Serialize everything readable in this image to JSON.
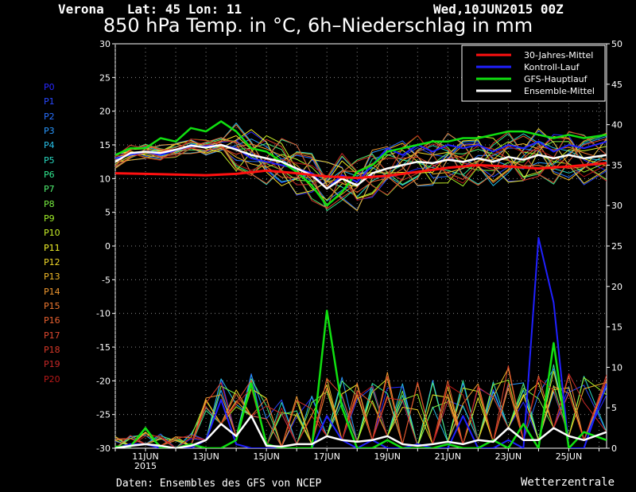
{
  "header": {
    "location": "Verona   Lat: 45 Lon: 11",
    "date": "Wed,10JUN2015 00Z",
    "title": "850 hPa Temp. in °C, 6h–Niederschlag in mm"
  },
  "footer": {
    "source": "Daten: Ensembles des GFS von NCEP",
    "brand": "Wetterzentrale"
  },
  "members": [
    {
      "label": "P0",
      "color": "#2828ff"
    },
    {
      "label": "P1",
      "color": "#2848ff"
    },
    {
      "label": "P2",
      "color": "#2870ff"
    },
    {
      "label": "P3",
      "color": "#2898ff"
    },
    {
      "label": "P4",
      "color": "#28c0e8"
    },
    {
      "label": "P5",
      "color": "#28d8c0"
    },
    {
      "label": "P6",
      "color": "#30e890"
    },
    {
      "label": "P7",
      "color": "#50f070"
    },
    {
      "label": "P8",
      "color": "#78f040"
    },
    {
      "label": "P9",
      "color": "#a0f028"
    },
    {
      "label": "P10",
      "color": "#c8f028"
    },
    {
      "label": "P11",
      "color": "#f0f028"
    },
    {
      "label": "P12",
      "color": "#f0d828"
    },
    {
      "label": "P13",
      "color": "#f0b828"
    },
    {
      "label": "P14",
      "color": "#f09830"
    },
    {
      "label": "P15",
      "color": "#f07830"
    },
    {
      "label": "P16",
      "color": "#e86030"
    },
    {
      "label": "P17",
      "color": "#e04830"
    },
    {
      "label": "P18",
      "color": "#d83828"
    },
    {
      "label": "P19",
      "color": "#c82828"
    },
    {
      "label": "P20",
      "color": "#b81818"
    }
  ],
  "chart_data": {
    "type": "line",
    "title": "850 hPa Temp. in °C, 6h–Niederschlag in mm",
    "x_ticks": [
      "11JUN",
      "13JUN",
      "15JUN",
      "17JUN",
      "19JUN",
      "21JUN",
      "23JUN",
      "25JUN"
    ],
    "x_tick_year": "2015",
    "x_range_days": [
      10.0,
      26.25
    ],
    "y_left": {
      "ticks": [
        30,
        25,
        20,
        15,
        10,
        5,
        0,
        -5,
        -10,
        -15,
        -20,
        -25,
        -30
      ],
      "range": [
        -30,
        30
      ]
    },
    "y_right": {
      "ticks": [
        50,
        45,
        40,
        35,
        30,
        25,
        20,
        15,
        10,
        5,
        0
      ],
      "range": [
        0,
        50
      ]
    },
    "grid": true,
    "legend": {
      "position": "top-right",
      "entries": [
        {
          "name": "30-Jahres-Mittel",
          "color": "#ff1010"
        },
        {
          "name": "Kontroll-Lauf",
          "color": "#2020ff"
        },
        {
          "name": "GFS-Hauptlauf",
          "color": "#10e010"
        },
        {
          "name": "Ensemble-Mittel",
          "color": "#ffffff"
        }
      ]
    },
    "temp_series": {
      "climate": {
        "x": [
          10.0,
          11.0,
          12.0,
          13.0,
          14.0,
          15.0,
          16.0,
          17.0,
          18.0,
          19.0,
          20.0,
          21.0,
          22.0,
          23.0,
          24.0,
          25.0,
          26.25
        ],
        "y": [
          10.8,
          10.7,
          10.6,
          10.5,
          10.7,
          11.2,
          10.8,
          10.3,
          10.1,
          10.4,
          11.0,
          11.6,
          12.0,
          11.8,
          11.5,
          11.8,
          12.3
        ]
      },
      "control": {
        "x": [
          10.0,
          10.5,
          11.0,
          11.5,
          12.0,
          12.5,
          13.0,
          13.5,
          14.0,
          14.5,
          15.0,
          15.5,
          16.0,
          16.5,
          17.0,
          17.5,
          18.0,
          18.5,
          19.0,
          19.5,
          20.0,
          20.5,
          21.0,
          21.5,
          22.0,
          22.5,
          23.0,
          23.5,
          24.0,
          24.5,
          25.0,
          25.5,
          26.25
        ],
        "y": [
          13.0,
          13.5,
          14.0,
          13.5,
          14.2,
          14.8,
          14.8,
          15.0,
          14.5,
          13.0,
          12.5,
          12.0,
          11.5,
          10.8,
          8.5,
          10.5,
          9.5,
          12.0,
          14.5,
          13.5,
          15.0,
          14.0,
          15.0,
          14.5,
          15.0,
          14.0,
          15.0,
          14.5,
          15.5,
          14.0,
          15.0,
          14.5,
          15.5
        ]
      },
      "gfs": {
        "x": [
          10.0,
          10.5,
          11.0,
          11.5,
          12.0,
          12.5,
          13.0,
          13.5,
          14.0,
          14.5,
          15.0,
          15.5,
          16.0,
          16.5,
          17.0,
          17.5,
          18.0,
          18.5,
          19.0,
          19.5,
          20.0,
          20.5,
          21.0,
          21.5,
          22.0,
          22.5,
          23.0,
          23.5,
          24.0,
          24.5,
          25.0,
          25.5,
          26.25
        ],
        "y": [
          13.5,
          14.5,
          14.5,
          16.0,
          15.5,
          17.5,
          17.0,
          18.5,
          17.0,
          14.5,
          14.0,
          12.5,
          11.0,
          9.0,
          6.0,
          8.0,
          11.0,
          12.0,
          14.0,
          14.5,
          15.0,
          15.5,
          15.5,
          16.0,
          16.0,
          16.5,
          17.0,
          17.0,
          16.5,
          16.0,
          16.5,
          16.0,
          16.5
        ]
      },
      "mean": {
        "x": [
          10.0,
          10.5,
          11.0,
          11.5,
          12.0,
          12.5,
          13.0,
          13.5,
          14.0,
          14.5,
          15.0,
          15.5,
          16.0,
          16.5,
          17.0,
          17.5,
          18.0,
          18.5,
          19.0,
          19.5,
          20.0,
          20.5,
          21.0,
          21.5,
          22.0,
          22.5,
          23.0,
          23.5,
          24.0,
          24.5,
          25.0,
          25.5,
          26.25
        ],
        "y": [
          12.5,
          13.8,
          14.0,
          13.8,
          14.3,
          14.9,
          14.6,
          15.0,
          14.3,
          13.5,
          13.0,
          12.5,
          11.5,
          10.5,
          8.5,
          10.0,
          9.0,
          10.8,
          11.5,
          12.0,
          12.5,
          12.3,
          12.8,
          12.5,
          13.0,
          12.5,
          13.2,
          12.8,
          13.5,
          13.0,
          13.5,
          13.0,
          13.5
        ]
      }
    },
    "precip_series": {
      "gfs": {
        "x": [
          10.0,
          10.5,
          11.0,
          11.5,
          12.0,
          12.5,
          13.0,
          13.5,
          14.0,
          14.5,
          15.0,
          15.5,
          16.0,
          16.5,
          17.0,
          17.5,
          18.0,
          18.5,
          19.0,
          19.5,
          20.0,
          20.5,
          21.0,
          21.5,
          22.0,
          22.5,
          23.0,
          23.5,
          24.0,
          24.5,
          25.0,
          25.5,
          26.25
        ],
        "y": [
          0.2,
          0.2,
          2.5,
          0.0,
          0.0,
          0.5,
          0.0,
          0.0,
          1.0,
          8.0,
          0.5,
          0.0,
          0.0,
          0.0,
          17.0,
          5.0,
          0.0,
          0.0,
          1.0,
          0.0,
          0.0,
          0.0,
          0.5,
          0.0,
          0.0,
          1.0,
          0.0,
          3.0,
          0.0,
          13.0,
          0.0,
          2.0,
          1.0
        ]
      },
      "control": {
        "x": [
          10.0,
          10.5,
          11.0,
          11.5,
          12.0,
          12.5,
          13.0,
          13.5,
          14.0,
          14.5,
          15.0,
          15.5,
          16.0,
          16.5,
          17.0,
          17.5,
          18.0,
          18.5,
          19.0,
          19.5,
          20.0,
          20.5,
          21.0,
          21.5,
          22.0,
          22.5,
          23.0,
          23.5,
          24.0,
          24.5,
          25.0,
          25.5,
          26.25
        ],
        "y": [
          0.0,
          0.5,
          0.5,
          0.0,
          0.0,
          0.0,
          1.0,
          6.0,
          0.5,
          0.0,
          0.0,
          0.0,
          0.0,
          0.0,
          4.0,
          1.0,
          0.0,
          1.0,
          0.0,
          0.0,
          0.5,
          0.0,
          0.0,
          4.0,
          0.0,
          0.0,
          1.0,
          0.0,
          26.0,
          18.0,
          0.0,
          0.0,
          8.0
        ]
      },
      "mean": {
        "x": [
          10.0,
          10.5,
          11.0,
          11.5,
          12.0,
          12.5,
          13.0,
          13.5,
          14.0,
          14.5,
          15.0,
          15.5,
          16.0,
          16.5,
          17.0,
          17.5,
          18.0,
          18.5,
          19.0,
          19.5,
          20.0,
          20.5,
          21.0,
          21.5,
          22.0,
          22.5,
          23.0,
          23.5,
          24.0,
          24.5,
          25.0,
          25.5,
          26.25
        ],
        "y": [
          0.0,
          0.3,
          0.5,
          0.3,
          0.0,
          0.3,
          1.0,
          3.0,
          1.5,
          4.0,
          0.3,
          0.2,
          0.5,
          0.5,
          1.5,
          1.0,
          0.8,
          1.0,
          1.5,
          0.5,
          0.3,
          0.5,
          0.8,
          0.5,
          1.0,
          0.8,
          2.5,
          1.0,
          1.0,
          2.5,
          1.5,
          1.0,
          2.0
        ]
      }
    }
  }
}
